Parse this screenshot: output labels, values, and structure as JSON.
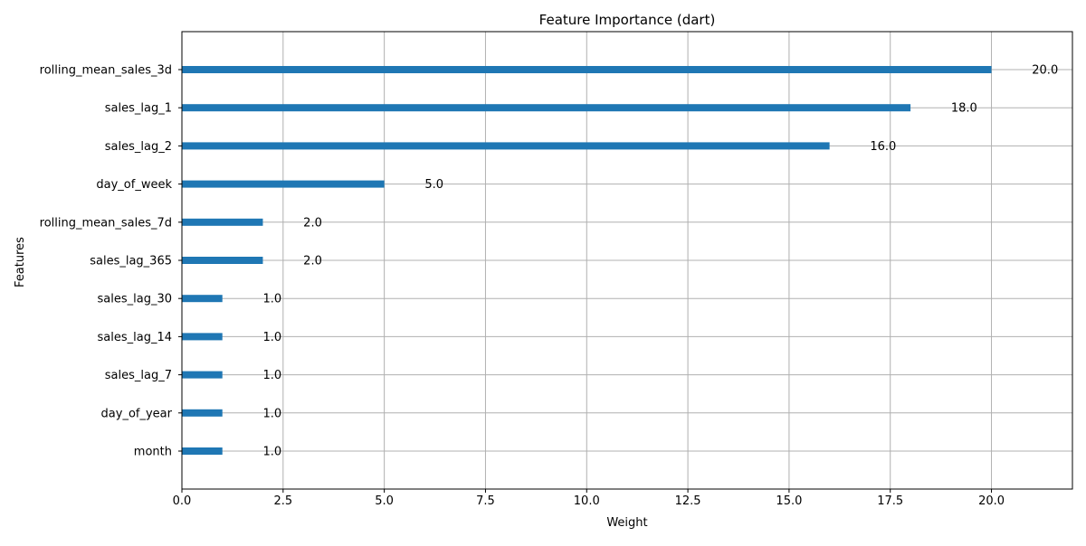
{
  "chart_data": {
    "type": "bar",
    "orientation": "horizontal",
    "title": "Feature Importance (dart)",
    "xlabel": "Weight",
    "ylabel": "Features",
    "categories": [
      "rolling_mean_sales_3d",
      "sales_lag_1",
      "sales_lag_2",
      "day_of_week",
      "rolling_mean_sales_7d",
      "sales_lag_365",
      "sales_lag_30",
      "sales_lag_14",
      "sales_lag_7",
      "day_of_year",
      "month"
    ],
    "values": [
      20,
      18,
      16,
      5,
      2,
      2,
      1,
      1,
      1,
      1,
      1
    ],
    "value_labels": [
      "20.0",
      "18.0",
      "16.0",
      "5.0",
      "2.0",
      "2.0",
      "1.0",
      "1.0",
      "1.0",
      "1.0",
      "1.0"
    ],
    "xlim": [
      0,
      22
    ],
    "x_ticks": [
      0,
      2.5,
      5,
      7.5,
      10,
      12.5,
      15,
      17.5,
      20
    ],
    "x_tick_labels": [
      "0.0",
      "2.5",
      "5.0",
      "7.5",
      "10.0",
      "12.5",
      "15.0",
      "17.5",
      "20.0"
    ],
    "grid": true,
    "legend": "none",
    "colors": {
      "bar": "#1f77b4",
      "grid": "#b0b0b0",
      "axis": "#000000"
    }
  }
}
